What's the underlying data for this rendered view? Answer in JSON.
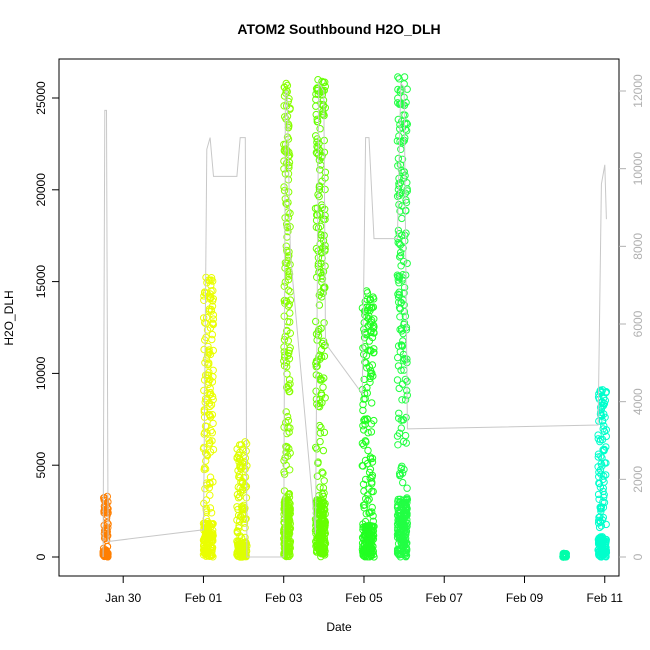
{
  "chart_data": {
    "type": "scatter",
    "title": "ATOM2 Southbound H2O_DLH",
    "xlabel": "Date",
    "ylabel": "H2O_DLH",
    "x_start": "Jan 28 2017",
    "xlim": [
      "Jan 28",
      "Feb 11"
    ],
    "ylim": [
      0,
      27000
    ],
    "y2lim": [
      0,
      12300
    ],
    "x_ticks": [
      "Jan 30",
      "Feb 01",
      "Feb 03",
      "Feb 05",
      "Feb 07",
      "Feb 09",
      "Feb 11"
    ],
    "y_ticks": [
      "0",
      "5000",
      "10000",
      "15000",
      "20000",
      "25000"
    ],
    "y2_ticks": [
      "0",
      "2000",
      "4000",
      "6000",
      "8000",
      "10000",
      "12000"
    ],
    "grid": false,
    "marker": "open-circle",
    "series": [
      {
        "color": "#ff7f00",
        "x_range": [
          "Jan 29 12:00",
          "Jan 29 15:00"
        ],
        "y_range": [
          0,
          3300
        ]
      },
      {
        "color": "#eaff00",
        "x_range": [
          "Feb 01 00:00",
          "Feb 01 06:00"
        ],
        "y_range": [
          0,
          15500
        ]
      },
      {
        "color": "#ddff00",
        "x_range": [
          "Feb 01 20:00",
          "Feb 02 02:00"
        ],
        "y_range": [
          0,
          6300
        ]
      },
      {
        "color": "#88ff00",
        "x_range": [
          "Feb 03 00:00",
          "Feb 03 04:00"
        ],
        "y_range": [
          0,
          25800
        ]
      },
      {
        "color": "#66ff00",
        "x_range": [
          "Feb 03 19:00",
          "Feb 04 01:00"
        ],
        "y_range": [
          0,
          26000
        ]
      },
      {
        "color": "#22ff22",
        "x_range": [
          "Feb 04 23:00",
          "Feb 05 06:00"
        ],
        "y_range": [
          0,
          14500
        ]
      },
      {
        "color": "#22ff44",
        "x_range": [
          "Feb 05 20:00",
          "Feb 06 02:00"
        ],
        "y_range": [
          0,
          26200
        ]
      },
      {
        "color": "#00ffaa",
        "x_range": [
          "Feb 09 23:00",
          "Feb 10 01:00"
        ],
        "y_range": [
          0,
          200
        ]
      },
      {
        "color": "#00ffcc",
        "x_range": [
          "Feb 10 20:00",
          "Feb 11 01:00"
        ],
        "y_range": [
          0,
          9200
        ]
      }
    ],
    "secondary_line": {
      "color": "#c8c8c8",
      "points": [
        [
          "Jan 29 12:00",
          0
        ],
        [
          "Jan 29 13:00",
          11500
        ],
        [
          "Jan 29 14:00",
          11500
        ],
        [
          "Jan 29 15:00",
          400
        ],
        [
          "Feb 01 00:00",
          700
        ],
        [
          "Feb 01 02:00",
          10500
        ],
        [
          "Feb 01 04:00",
          10800
        ],
        [
          "Feb 01 06:00",
          9800
        ],
        [
          "Feb 01 20:00",
          9800
        ],
        [
          "Feb 01 22:00",
          10800
        ],
        [
          "Feb 02 01:00",
          10800
        ],
        [
          "Feb 02 02:00",
          0
        ],
        [
          "Feb 03 00:00",
          0
        ],
        [
          "Feb 03 01:00",
          12000
        ],
        [
          "Feb 03 02:00",
          12000
        ],
        [
          "Feb 03 04:00",
          7800
        ],
        [
          "Feb 03 19:00",
          600
        ],
        [
          "Feb 03 21:00",
          12200
        ],
        [
          "Feb 04 00:00",
          12000
        ],
        [
          "Feb 04 01:00",
          5500
        ],
        [
          "Feb 04 23:00",
          4200
        ],
        [
          "Feb 05 01:00",
          10800
        ],
        [
          "Feb 05 03:00",
          10800
        ],
        [
          "Feb 05 06:00",
          8200
        ],
        [
          "Feb 05 20:00",
          8200
        ],
        [
          "Feb 05 22:00",
          12200
        ],
        [
          "Feb 06 00:00",
          12100
        ],
        [
          "Feb 06 02:00",
          3300
        ],
        [
          "Feb 10 20:00",
          3400
        ],
        [
          "Feb 10 22:00",
          9600
        ],
        [
          "Feb 11 00:00",
          10100
        ],
        [
          "Feb 11 01:00",
          8700
        ]
      ]
    }
  }
}
